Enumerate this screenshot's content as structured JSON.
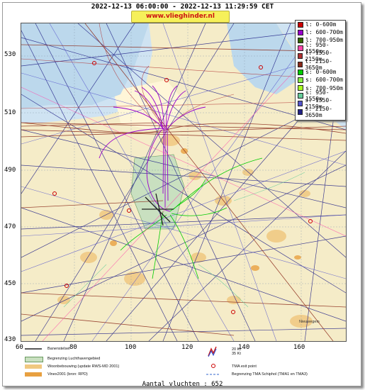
{
  "header": {
    "time_range": "2022-12-13 06:00:00 - 2022-12-13 11:29:59 CET",
    "site_badge": "www.vlieghinder.nl"
  },
  "axes": {
    "y_ticks": [
      "530",
      "510",
      "490",
      "470",
      "450",
      "430"
    ],
    "x_ticks": [
      "60",
      "80",
      "100",
      "120",
      "140",
      "160"
    ]
  },
  "legend": {
    "entries": [
      {
        "label": "l: 0-600m",
        "color": "#cc0000"
      },
      {
        "label": "l: 600-700m",
        "color": "#9900cc"
      },
      {
        "label": "l: 700-950m",
        "color": "#336600"
      },
      {
        "label": "l: 950-1550m",
        "color": "#ff44aa"
      },
      {
        "label": "l: 1550-2150m",
        "color": "#b03030"
      },
      {
        "label": "l: 2150-3650m",
        "color": "#8b2a1a"
      },
      {
        "label": "s: 0-600m",
        "color": "#00cc00"
      },
      {
        "label": "s: 600-700m",
        "color": "#88ee44"
      },
      {
        "label": "s: 700-950m",
        "color": "#aaff22"
      },
      {
        "label": "s: 950-1550m",
        "color": "#66cc99"
      },
      {
        "label": "s: 1550-2150m",
        "color": "#5555cc"
      },
      {
        "label": "s: 2150-3650m",
        "color": "#222288"
      }
    ]
  },
  "footer": {
    "items": [
      {
        "label": "Banenstelsel",
        "color": "#222222"
      },
      {
        "label": "Begrenzing Luchthavengebied",
        "color": "#c9e0c0"
      },
      {
        "label": "Woonbebouwing (update RWS-MD 2001)",
        "color": "#f0c880"
      },
      {
        "label": "Vinex2001 (bron: RPD)",
        "color": "#e8a040"
      }
    ],
    "wind_labels": [
      "20 Kt",
      "35 Kt"
    ],
    "tma_exit": "TMA exit point",
    "tma_border": "Begrenzing TMA Schiphol  (TMA1 en TMA3)",
    "flight_count": "Aantal vluchten : 652"
  },
  "map_labels": {
    "nieuwegein": "Nieuwegein"
  }
}
